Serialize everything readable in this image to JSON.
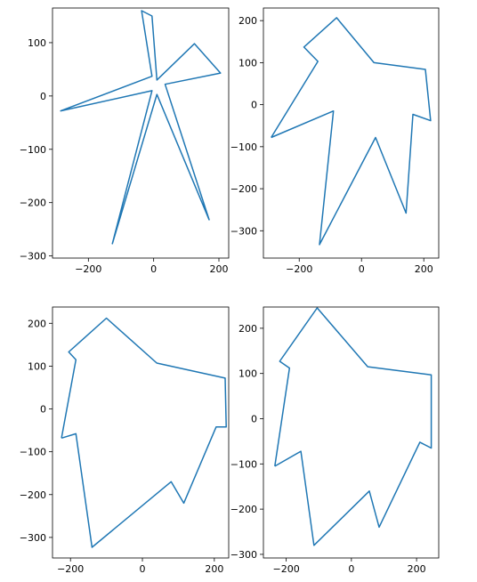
{
  "chart_data": [
    {
      "type": "line",
      "xticks": [
        -200,
        0,
        200
      ],
      "yticks": [
        -300,
        -200,
        -100,
        0,
        100
      ],
      "xlim": [
        -310,
        230
      ],
      "ylim": [
        -304,
        165
      ],
      "series": [
        {
          "color": "#1f77b4",
          "points": [
            [
              -127,
              -278
            ],
            [
              -5,
              10
            ],
            [
              -285,
              -28
            ],
            [
              -5,
              37
            ],
            [
              -37,
              160
            ],
            [
              -5,
              150
            ],
            [
              10,
              30
            ],
            [
              125,
              98
            ],
            [
              205,
              43
            ],
            [
              35,
              22
            ],
            [
              170,
              -232
            ],
            [
              10,
              3
            ],
            [
              -127,
              -278
            ]
          ]
        }
      ]
    },
    {
      "type": "line",
      "xticks": [
        -200,
        0,
        200
      ],
      "yticks": [
        -300,
        -200,
        -100,
        0,
        100,
        200
      ],
      "xlim": [
        -315,
        248
      ],
      "ylim": [
        -365,
        230
      ],
      "series": [
        {
          "color": "#1f77b4",
          "points": [
            [
              -290,
              -78
            ],
            [
              -140,
              103
            ],
            [
              -185,
              137
            ],
            [
              -80,
              207
            ],
            [
              40,
              100
            ],
            [
              205,
              84
            ],
            [
              222,
              -38
            ],
            [
              165,
              -23
            ],
            [
              143,
              -258
            ],
            [
              45,
              -78
            ],
            [
              -135,
              -333
            ],
            [
              -90,
              -15
            ],
            [
              -290,
              -78
            ]
          ]
        }
      ]
    },
    {
      "type": "line",
      "xticks": [
        -200,
        0,
        200
      ],
      "yticks": [
        -300,
        -200,
        -100,
        0,
        100,
        200
      ],
      "xlim": [
        -250,
        240
      ],
      "ylim": [
        -348,
        238
      ],
      "series": [
        {
          "color": "#1f77b4",
          "points": [
            [
              -225,
              -68
            ],
            [
              -185,
              -58
            ],
            [
              -140,
              -323
            ],
            [
              80,
              -170
            ],
            [
              115,
              -220
            ],
            [
              205,
              -42
            ],
            [
              233,
              -42
            ],
            [
              230,
              72
            ],
            [
              40,
              107
            ],
            [
              -100,
              212
            ],
            [
              -205,
              133
            ],
            [
              -185,
              115
            ],
            [
              -225,
              -68
            ]
          ]
        }
      ]
    },
    {
      "type": "line",
      "xticks": [
        -200,
        0,
        200
      ],
      "yticks": [
        -300,
        -200,
        -100,
        0,
        100,
        200
      ],
      "xlim": [
        -270,
        268
      ],
      "ylim": [
        -308,
        247
      ],
      "series": [
        {
          "color": "#1f77b4",
          "points": [
            [
              -235,
              -105
            ],
            [
              -155,
              -72
            ],
            [
              -115,
              -280
            ],
            [
              55,
              -160
            ],
            [
              85,
              -240
            ],
            [
              210,
              -52
            ],
            [
              245,
              -65
            ],
            [
              245,
              97
            ],
            [
              50,
              115
            ],
            [
              -105,
              245
            ],
            [
              -220,
              127
            ],
            [
              -190,
              112
            ],
            [
              -235,
              -105
            ]
          ]
        }
      ]
    }
  ]
}
